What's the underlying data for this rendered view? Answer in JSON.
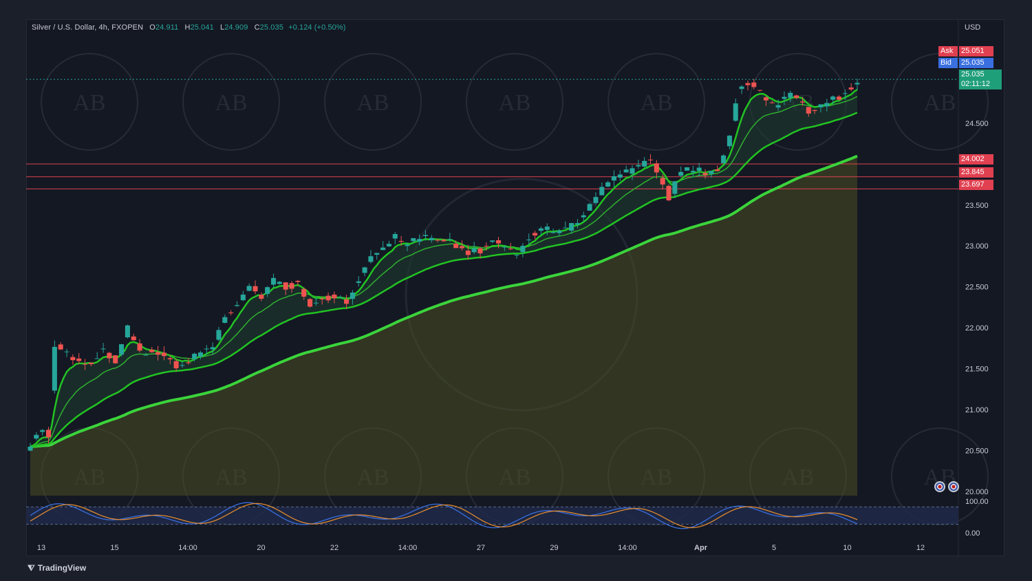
{
  "header": {
    "symbol": "Silver / U.S. Dollar, 4h, FXOPEN",
    "o_label": "O",
    "o_value": "24.911",
    "h_label": "H",
    "h_value": "25.041",
    "l_label": "L",
    "l_value": "24.909",
    "c_label": "C",
    "c_value": "25.035",
    "change": "+0.124 (+0.50%)"
  },
  "price_tags": {
    "ask_label": "Ask",
    "ask_value": "25.051",
    "bid_label": "Bid",
    "bid_value": "25.035",
    "last_value": "25.035",
    "countdown": "02:11:12",
    "level_1": "24.002",
    "level_2": "23.845",
    "level_3": "23.697"
  },
  "branding": {
    "logo_text": "TradingView",
    "watermark_text": "AB"
  },
  "colors": {
    "up": "#26a69a",
    "down": "#ef5350",
    "ema_fast": "#22c422",
    "ema_slow": "#3bd43b",
    "level_line": "#e04050",
    "ask": "#e04050",
    "bid": "#3a6fe0",
    "last": "#1f9e7a"
  },
  "chart_data": {
    "type": "candlestick",
    "currency": "USD",
    "y_ticks": [
      "20.000",
      "20.500",
      "21.000",
      "21.500",
      "22.000",
      "22.500",
      "23.000",
      "23.500",
      "24.500"
    ],
    "ylim": [
      19.95,
      25.6
    ],
    "x_ticks": [
      "13",
      "15",
      "14:00",
      "20",
      "22",
      "14:00",
      "27",
      "29",
      "14:00",
      "Apr",
      "5",
      "10",
      "12"
    ],
    "horizontal_levels": [
      24.002,
      23.845,
      23.697
    ],
    "current_price": 25.035,
    "close_path": [
      [
        0,
        20.55
      ],
      [
        3,
        20.75
      ],
      [
        6,
        20.7
      ],
      [
        8,
        21.8
      ],
      [
        12,
        21.7
      ],
      [
        16,
        21.6
      ],
      [
        20,
        21.55
      ],
      [
        24,
        21.75
      ],
      [
        28,
        21.6
      ],
      [
        32,
        22.0
      ],
      [
        36,
        21.7
      ],
      [
        40,
        21.7
      ],
      [
        44,
        21.65
      ],
      [
        48,
        21.55
      ],
      [
        52,
        21.6
      ],
      [
        56,
        21.7
      ],
      [
        60,
        21.8
      ],
      [
        64,
        22.1
      ],
      [
        68,
        22.3
      ],
      [
        72,
        22.5
      ],
      [
        76,
        22.4
      ],
      [
        80,
        22.6
      ],
      [
        84,
        22.5
      ],
      [
        88,
        22.55
      ],
      [
        92,
        22.3
      ],
      [
        96,
        22.35
      ],
      [
        100,
        22.4
      ],
      [
        104,
        22.3
      ],
      [
        108,
        22.6
      ],
      [
        112,
        22.9
      ],
      [
        116,
        23.0
      ],
      [
        120,
        23.1
      ],
      [
        124,
        23.0
      ],
      [
        128,
        23.1
      ],
      [
        132,
        23.1
      ],
      [
        136,
        23.1
      ],
      [
        140,
        23.0
      ],
      [
        144,
        22.9
      ],
      [
        148,
        22.95
      ],
      [
        152,
        23.05
      ],
      [
        156,
        23.0
      ],
      [
        160,
        22.9
      ],
      [
        164,
        23.1
      ],
      [
        168,
        23.25
      ],
      [
        172,
        23.15
      ],
      [
        176,
        23.2
      ],
      [
        180,
        23.3
      ],
      [
        184,
        23.5
      ],
      [
        188,
        23.7
      ],
      [
        192,
        23.85
      ],
      [
        196,
        23.9
      ],
      [
        200,
        23.95
      ],
      [
        204,
        24.05
      ],
      [
        208,
        23.8
      ],
      [
        210,
        23.6
      ],
      [
        214,
        23.9
      ],
      [
        218,
        23.95
      ],
      [
        222,
        23.9
      ],
      [
        226,
        23.95
      ],
      [
        230,
        24.3
      ],
      [
        233,
        24.9
      ],
      [
        236,
        25.0
      ],
      [
        240,
        24.9
      ],
      [
        244,
        24.7
      ],
      [
        248,
        24.8
      ],
      [
        252,
        24.85
      ],
      [
        256,
        24.6
      ],
      [
        260,
        24.7
      ],
      [
        264,
        24.8
      ],
      [
        268,
        24.85
      ],
      [
        272,
        25.035
      ]
    ],
    "oscillator": {
      "range_labels": [
        "100.00",
        "0.00"
      ],
      "band_upper": 80,
      "band_lower": 20
    }
  }
}
